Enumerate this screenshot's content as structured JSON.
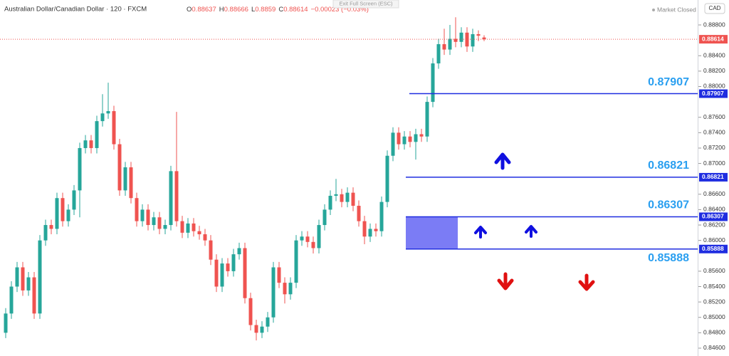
{
  "chart_data": {
    "type": "candlestick",
    "title": "Australian Dollar/Canadian Dollar · 120 · FXCM",
    "ohlc_letters": [
      "O",
      "H",
      "L",
      "C"
    ],
    "ohlc": [
      0.88637,
      0.88666,
      0.8859,
      0.88614
    ],
    "change": "−0.00023 (−0.03%)",
    "fullscreen_hint": "Exit Full Screen (ESC)",
    "status": "Market Closed",
    "currency": "CAD",
    "up_color": "#26a69a",
    "down_color": "#ef5350",
    "level_color": "#1f2de0",
    "ylim": [
      0.84498,
      0.89124
    ],
    "yticks": [
      {
        "value": 0.846,
        "label": "0.84600"
      },
      {
        "value": 0.848,
        "label": "0.84800"
      },
      {
        "value": 0.85,
        "label": "0.85000"
      },
      {
        "value": 0.852,
        "label": "0.85200"
      },
      {
        "value": 0.854,
        "label": "0.85400"
      },
      {
        "value": 0.856,
        "label": "0.85600"
      },
      {
        "value": 0.86,
        "label": "0.86000"
      },
      {
        "value": 0.862,
        "label": "0.86200"
      },
      {
        "value": 0.864,
        "label": "0.86400"
      },
      {
        "value": 0.866,
        "label": "0.86600"
      },
      {
        "value": 0.87,
        "label": "0.87000"
      },
      {
        "value": 0.872,
        "label": "0.87200"
      },
      {
        "value": 0.874,
        "label": "0.87400"
      },
      {
        "value": 0.876,
        "label": "0.87600"
      },
      {
        "value": 0.88,
        "label": "0.88000"
      },
      {
        "value": 0.882,
        "label": "0.88200"
      },
      {
        "value": 0.884,
        "label": "0.88400"
      },
      {
        "value": 0.888,
        "label": "0.88800"
      }
    ],
    "last_price": 0.88614,
    "levels": [
      0.87907,
      0.86821,
      0.86307,
      0.85888
    ],
    "open": [
      0.848,
      0.8505,
      0.854,
      0.8565,
      0.8535,
      0.8552,
      0.8505,
      0.86,
      0.862,
      0.8615,
      0.8655,
      0.8625,
      0.864,
      0.8665,
      0.872,
      0.873,
      0.872,
      0.8755,
      0.8765,
      0.8768,
      0.8725,
      0.8665,
      0.8695,
      0.8655,
      0.8625,
      0.864,
      0.862,
      0.863,
      0.8615,
      0.862,
      0.869,
      0.8625,
      0.861,
      0.8622,
      0.8612,
      0.8608,
      0.86,
      0.8575,
      0.854,
      0.857,
      0.856,
      0.8582,
      0.859,
      0.8525,
      0.849,
      0.848,
      0.8488,
      0.85,
      0.8565,
      0.8545,
      0.853,
      0.8545,
      0.86,
      0.8605,
      0.8598,
      0.859,
      0.862,
      0.864,
      0.8658,
      0.866,
      0.865,
      0.8662,
      0.8645,
      0.8625,
      0.8605,
      0.8615,
      0.8612,
      0.865,
      0.871,
      0.874,
      0.8725,
      0.8735,
      0.8728,
      0.8738,
      0.8735,
      0.878,
      0.883,
      0.8855,
      0.8848,
      0.8862,
      0.8858,
      0.887,
      0.8852,
      0.8868,
      0.88637
    ],
    "high": [
      0.8512,
      0.8547,
      0.8572,
      0.8572,
      0.8559,
      0.8559,
      0.8607,
      0.8627,
      0.8627,
      0.8662,
      0.8662,
      0.8647,
      0.8672,
      0.8727,
      0.8737,
      0.8737,
      0.8762,
      0.879,
      0.8805,
      0.8775,
      0.8732,
      0.8702,
      0.8702,
      0.8662,
      0.8647,
      0.8647,
      0.8637,
      0.8637,
      0.8627,
      0.8697,
      0.8767,
      0.8632,
      0.8629,
      0.8629,
      0.8619,
      0.8615,
      0.8607,
      0.8582,
      0.8577,
      0.8577,
      0.8589,
      0.8597,
      0.8597,
      0.8532,
      0.8497,
      0.8495,
      0.8507,
      0.8572,
      0.8572,
      0.8552,
      0.8552,
      0.8607,
      0.8612,
      0.8612,
      0.8605,
      0.8627,
      0.8647,
      0.8665,
      0.868,
      0.8667,
      0.8669,
      0.8669,
      0.8652,
      0.8632,
      0.8622,
      0.8622,
      0.8657,
      0.8717,
      0.8747,
      0.8747,
      0.8742,
      0.8742,
      0.8745,
      0.8745,
      0.8787,
      0.8837,
      0.8862,
      0.8875,
      0.888,
      0.889,
      0.8877,
      0.8877,
      0.8875,
      0.8873,
      0.88666
    ],
    "low": [
      0.8473,
      0.8498,
      0.8533,
      0.8528,
      0.8528,
      0.8498,
      0.8498,
      0.8593,
      0.8608,
      0.8608,
      0.8618,
      0.8618,
      0.8633,
      0.863,
      0.8713,
      0.8713,
      0.8713,
      0.8748,
      0.8758,
      0.8718,
      0.8658,
      0.8658,
      0.8648,
      0.8618,
      0.8618,
      0.8613,
      0.8613,
      0.8608,
      0.8608,
      0.8613,
      0.8618,
      0.8603,
      0.8603,
      0.8605,
      0.8601,
      0.8593,
      0.8568,
      0.8533,
      0.8533,
      0.8553,
      0.8553,
      0.8575,
      0.8518,
      0.8483,
      0.847,
      0.8473,
      0.8481,
      0.8493,
      0.8538,
      0.8518,
      0.8523,
      0.8538,
      0.8593,
      0.8591,
      0.8583,
      0.8583,
      0.8613,
      0.8633,
      0.8651,
      0.8643,
      0.8643,
      0.8638,
      0.8618,
      0.8595,
      0.8598,
      0.8605,
      0.8605,
      0.8643,
      0.8703,
      0.8718,
      0.8718,
      0.8721,
      0.8705,
      0.8728,
      0.8728,
      0.8773,
      0.8823,
      0.8841,
      0.8841,
      0.8851,
      0.8851,
      0.8845,
      0.8845,
      0.8859,
      0.8859
    ],
    "close": [
      0.8505,
      0.854,
      0.8565,
      0.8535,
      0.8552,
      0.8505,
      0.86,
      0.862,
      0.8615,
      0.8655,
      0.8625,
      0.864,
      0.8665,
      0.872,
      0.873,
      0.872,
      0.8755,
      0.8765,
      0.8768,
      0.8725,
      0.8665,
      0.8695,
      0.8655,
      0.8625,
      0.864,
      0.862,
      0.863,
      0.8615,
      0.862,
      0.869,
      0.8625,
      0.861,
      0.8622,
      0.8612,
      0.8608,
      0.86,
      0.8575,
      0.854,
      0.857,
      0.856,
      0.8582,
      0.859,
      0.8525,
      0.849,
      0.848,
      0.8488,
      0.85,
      0.8565,
      0.8545,
      0.853,
      0.8545,
      0.86,
      0.8605,
      0.8598,
      0.859,
      0.862,
      0.864,
      0.8658,
      0.866,
      0.865,
      0.8662,
      0.8645,
      0.8625,
      0.8605,
      0.8615,
      0.8612,
      0.865,
      0.871,
      0.874,
      0.8725,
      0.8735,
      0.8728,
      0.8738,
      0.8735,
      0.878,
      0.883,
      0.8855,
      0.8848,
      0.8862,
      0.8858,
      0.887,
      0.8852,
      0.8868,
      0.8866,
      0.88614
    ]
  }
}
